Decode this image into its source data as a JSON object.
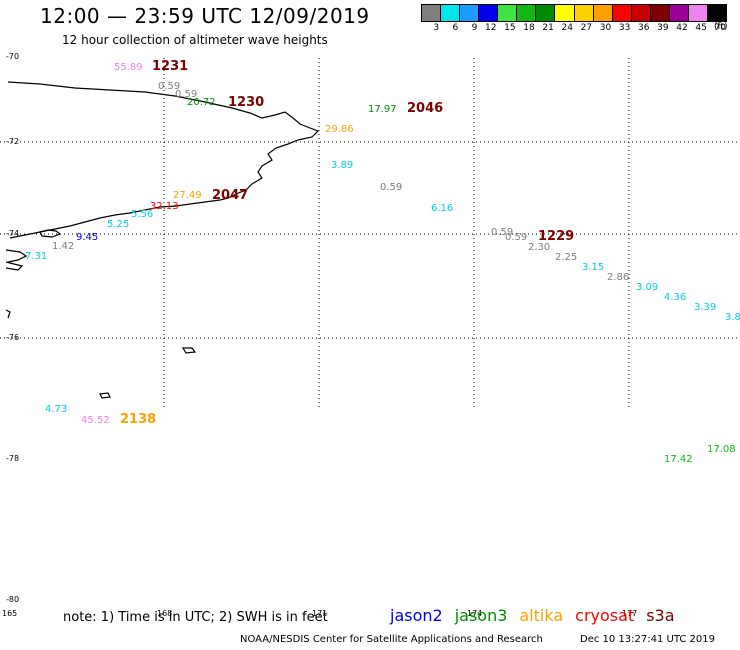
{
  "title": "12:00 — 23:59 UTC 12/09/2019",
  "subtitle": "12 hour collection of altimeter wave heights",
  "legend": {
    "unit": "(ft)",
    "items": [
      {
        "label": "3",
        "color": "#7f7f7f"
      },
      {
        "label": "6",
        "color": "#00e5ee"
      },
      {
        "label": "9",
        "color": "#1e9bff"
      },
      {
        "label": "12",
        "color": "#0000ee"
      },
      {
        "label": "15",
        "color": "#3ce63c"
      },
      {
        "label": "18",
        "color": "#12b812"
      },
      {
        "label": "21",
        "color": "#008a00"
      },
      {
        "label": "24",
        "color": "#ffff00"
      },
      {
        "label": "27",
        "color": "#ffd000"
      },
      {
        "label": "30",
        "color": "#ffa000"
      },
      {
        "label": "33",
        "color": "#ff0000"
      },
      {
        "label": "36",
        "color": "#c80000"
      },
      {
        "label": "39",
        "color": "#7d0000"
      },
      {
        "label": "42",
        "color": "#9b009b"
      },
      {
        "label": "45",
        "color": "#ee82ee"
      },
      {
        "label": "70",
        "color": "#000000"
      }
    ]
  },
  "lat_labels": [
    "-70",
    "-72",
    "-74",
    "-76",
    "-78",
    "-80"
  ],
  "lon_labels": [
    "165",
    "168",
    "171",
    "174",
    "177"
  ],
  "observations": [
    {
      "text": "55.89",
      "color": "#ee82ee"
    },
    {
      "text": "1231",
      "color": "#7d0000"
    },
    {
      "text": "0.59",
      "color": "#7f7f7f"
    },
    {
      "text": "0.59",
      "color": "#7f7f7f"
    },
    {
      "text": "20.72",
      "color": "#008a00"
    },
    {
      "text": "1230",
      "color": "#7d0000"
    },
    {
      "text": "17.97",
      "color": "#008a00"
    },
    {
      "text": "2046",
      "color": "#7d0000"
    },
    {
      "text": "29.86",
      "color": "#ffa000"
    },
    {
      "text": "3.89",
      "color": "#00cfe0"
    },
    {
      "text": "0.59",
      "color": "#7f7f7f"
    },
    {
      "text": "6.16",
      "color": "#00cfe0"
    },
    {
      "text": "27.49",
      "color": "#ffa000"
    },
    {
      "text": "2047",
      "color": "#7d0000"
    },
    {
      "text": "32.13",
      "color": "#ff0000"
    },
    {
      "text": "5.56",
      "color": "#00cfe0"
    },
    {
      "text": "5.25",
      "color": "#00cfe0"
    },
    {
      "text": "9.45",
      "color": "#0000ee"
    },
    {
      "text": "1.42",
      "color": "#7f7f7f"
    },
    {
      "text": "7.31",
      "color": "#00cfe0"
    },
    {
      "text": "0.59",
      "color": "#7f7f7f"
    },
    {
      "text": "0.59",
      "color": "#7f7f7f"
    },
    {
      "text": "1229",
      "color": "#7d0000"
    },
    {
      "text": "2.30",
      "color": "#7f7f7f"
    },
    {
      "text": "2.25",
      "color": "#7f7f7f"
    },
    {
      "text": "3.15",
      "color": "#00cfe0"
    },
    {
      "text": "2.86",
      "color": "#7f7f7f"
    },
    {
      "text": "3.09",
      "color": "#00cfe0"
    },
    {
      "text": "4.36",
      "color": "#00cfe0"
    },
    {
      "text": "3.39",
      "color": "#00cfe0"
    },
    {
      "text": "3.8",
      "color": "#00cfe0"
    },
    {
      "text": "4.73",
      "color": "#00cfe0"
    },
    {
      "text": "45.52",
      "color": "#ee82ee"
    },
    {
      "text": "2138",
      "color": "#ffa000"
    },
    {
      "text": "17.08",
      "color": "#12b812"
    },
    {
      "text": "17.42",
      "color": "#12b812"
    }
  ],
  "note": "note: 1) Time is in UTC; 2) SWH is in feet",
  "satellites": [
    {
      "name": "jason2",
      "color": "#0000ee"
    },
    {
      "name": "jason3",
      "color": "#008a00"
    },
    {
      "name": "altika",
      "color": "#ffa000"
    },
    {
      "name": "cryosat",
      "color": "#ff0000"
    },
    {
      "name": "s3a",
      "color": "#7d0000"
    }
  ],
  "credit": "NOAA/NESDIS Center for Satellite Applications and Research",
  "timestamp": "Dec 10 13:27:41 UTC 2019"
}
